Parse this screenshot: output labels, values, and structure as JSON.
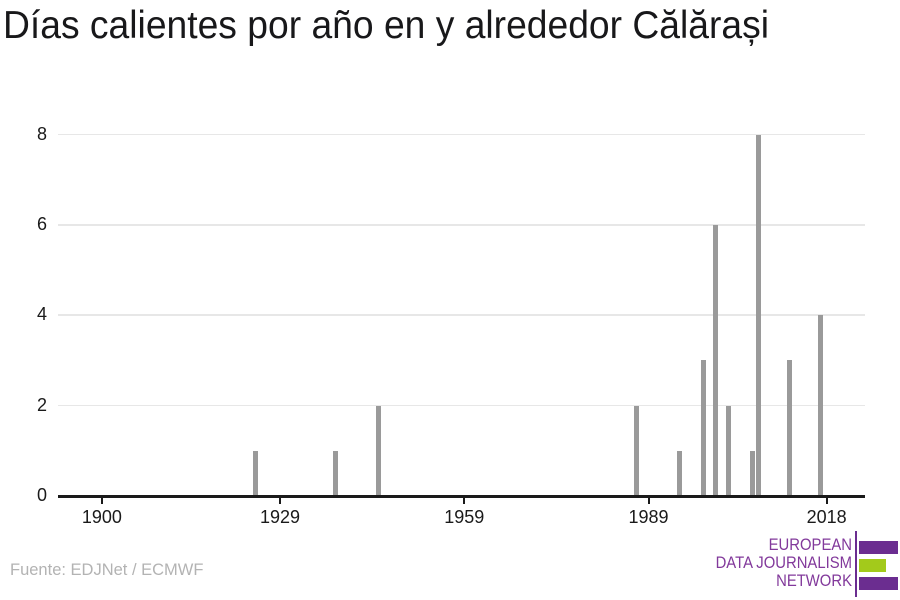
{
  "title": "Días calientes por año en y alrededor Călărași",
  "source": "Fuente: EDJNet / ECMWF",
  "logo": {
    "lines": [
      "EUROPEAN",
      "DATA JOURNALISM",
      "NETWORK"
    ],
    "text_color": "#82399b",
    "purple": "#6b2d90",
    "green": "#a3ca1b"
  },
  "chart_data": {
    "type": "bar",
    "title": "Días calientes por año en y alrededor Călărași",
    "x": [
      1925,
      1938,
      1945,
      1987,
      1994,
      1998,
      2000,
      2002,
      2006,
      2007,
      2012,
      2017
    ],
    "values": [
      1,
      1,
      2,
      2,
      1,
      3,
      6,
      2,
      1,
      8,
      3,
      4
    ],
    "xticks": [
      1900,
      1929,
      1959,
      1989,
      2018
    ],
    "yticks": [
      0,
      2,
      4,
      6,
      8
    ],
    "xlim": [
      1893.5,
      2024.3
    ],
    "ylim": [
      0,
      8
    ],
    "grid": "horizontal",
    "bar_color": "#9a9a9a"
  }
}
